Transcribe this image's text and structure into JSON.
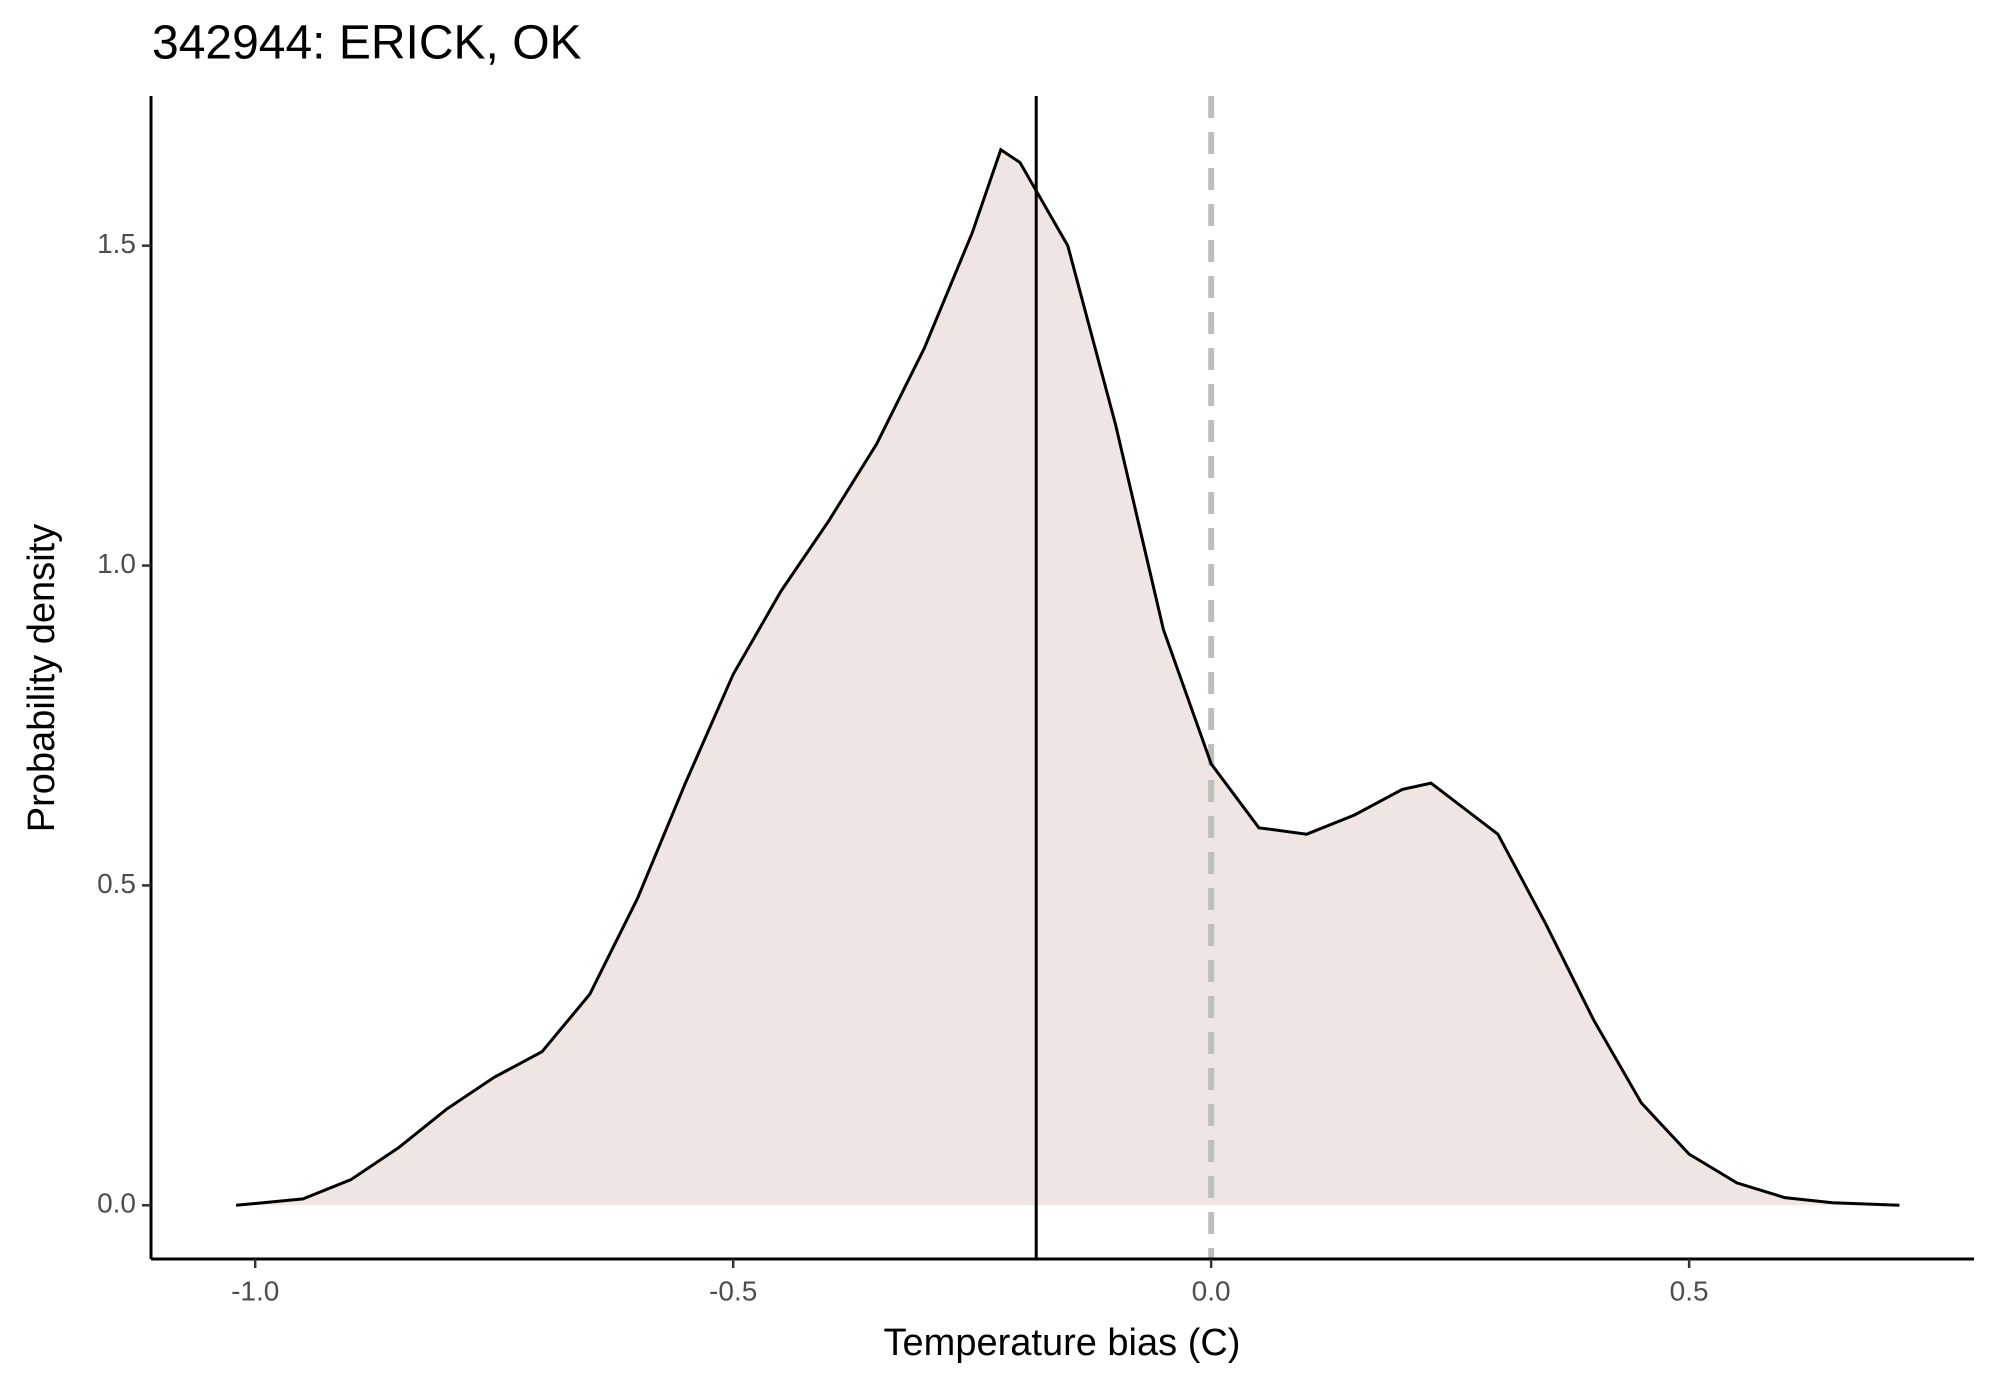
{
  "chart_data": {
    "type": "density",
    "title": "342944: ERICK, OK",
    "x_label": "Temperature bias (C)",
    "y_label": "Probability density",
    "x": [
      -1.02,
      -0.95,
      -0.9,
      -0.85,
      -0.8,
      -0.75,
      -0.7,
      -0.65,
      -0.6,
      -0.55,
      -0.5,
      -0.45,
      -0.4,
      -0.35,
      -0.3,
      -0.25,
      -0.22,
      -0.2,
      -0.15,
      -0.1,
      -0.05,
      0.0,
      0.05,
      0.1,
      0.15,
      0.2,
      0.23,
      0.3,
      0.35,
      0.4,
      0.45,
      0.5,
      0.55,
      0.6,
      0.65,
      0.72
    ],
    "values": [
      0.0,
      0.01,
      0.04,
      0.09,
      0.15,
      0.2,
      0.24,
      0.33,
      0.48,
      0.66,
      0.83,
      0.96,
      1.07,
      1.19,
      1.34,
      1.52,
      1.65,
      1.63,
      1.5,
      1.22,
      0.9,
      0.69,
      0.59,
      0.58,
      0.61,
      0.65,
      0.66,
      0.58,
      0.44,
      0.29,
      0.16,
      0.08,
      0.035,
      0.012,
      0.004,
      0.0
    ],
    "fill": "#efe6e3",
    "color": "#000000",
    "vlines": [
      {
        "x": -0.183,
        "color": "#000000",
        "style": "solid"
      },
      {
        "x": 0.0,
        "color": "#bebebe",
        "style": "dashed"
      }
    ],
    "xlim": [
      -1.109,
      0.798
    ],
    "ylim": [
      -0.084,
      1.734
    ],
    "xticks": [
      {
        "value": -1.0,
        "label": "-1.0"
      },
      {
        "value": -0.5,
        "label": "-0.5"
      },
      {
        "value": 0.0,
        "label": "0.0"
      },
      0.5
    ],
    "yticks": [
      {
        "value": 0.0,
        "label": "0.0"
      },
      0.5,
      {
        "value": 1.0,
        "label": "1.0"
      },
      1.5
    ],
    "grid": false
  }
}
